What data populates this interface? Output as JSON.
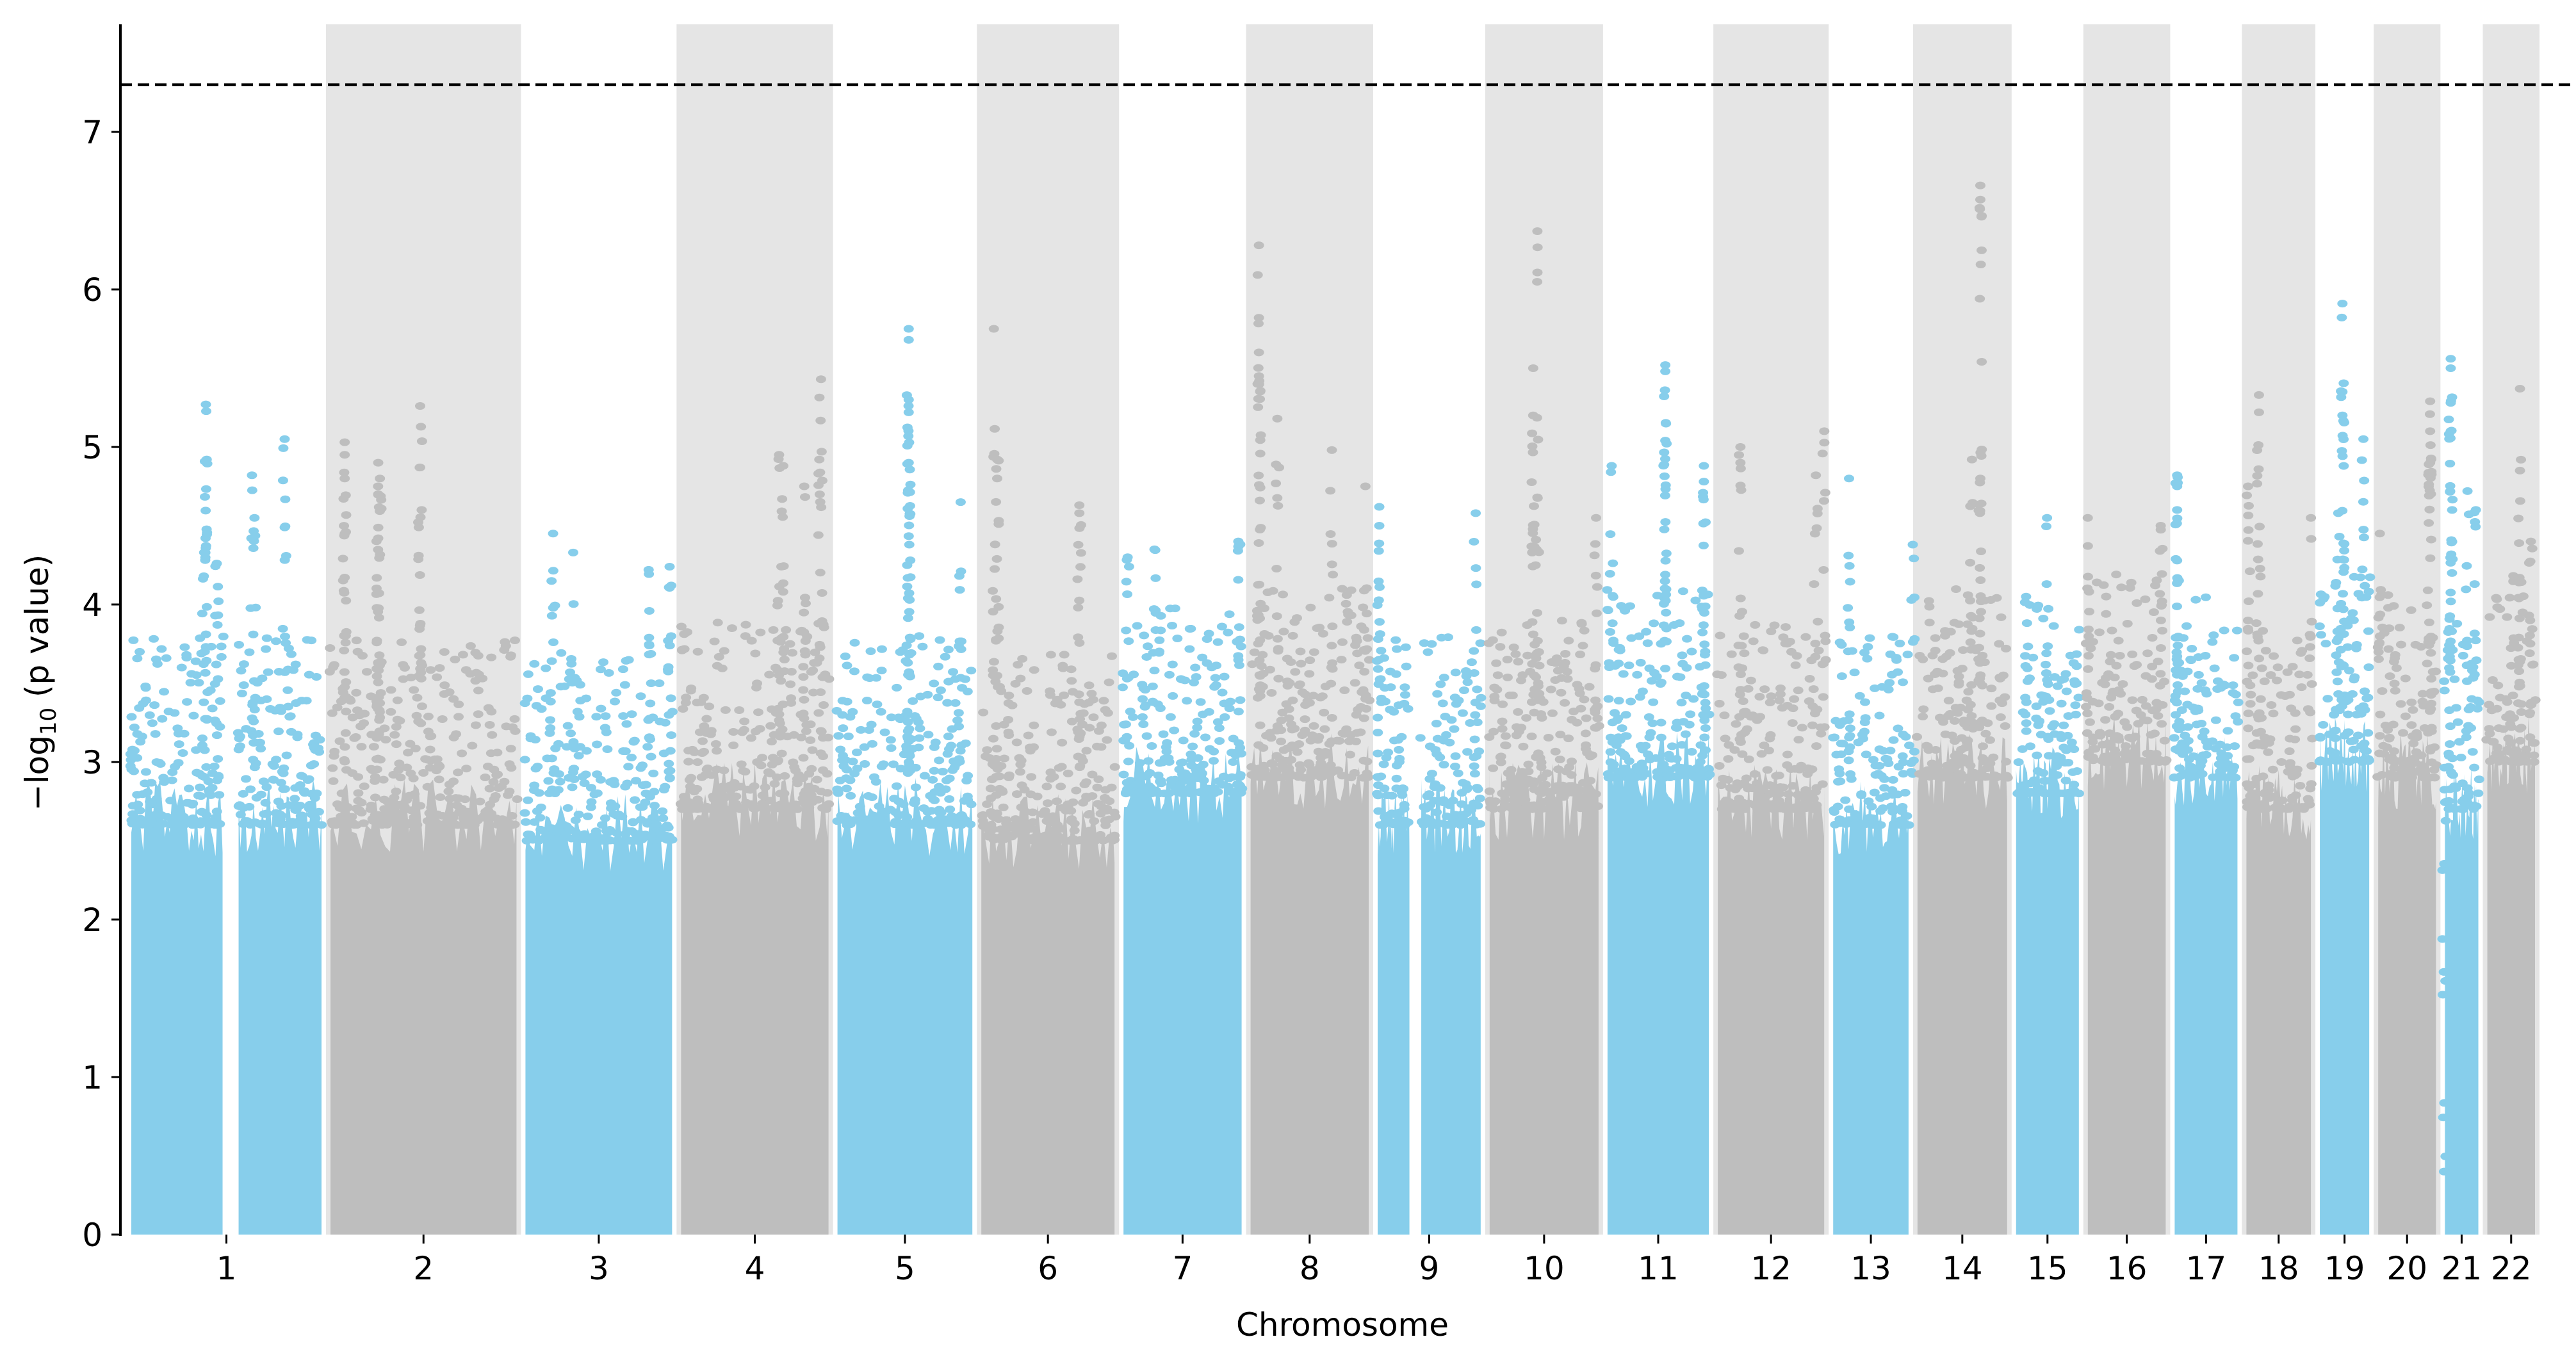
{
  "chart_data": {
    "type": "scatter",
    "subtype": "manhattan",
    "title": "",
    "xlabel": "Chromosome",
    "ylabel_prefix": "−log",
    "ylabel_sub": "10",
    "ylabel_suffix": " (p value)",
    "ylim": [
      0,
      7.65
    ],
    "yticks": [
      0,
      1,
      2,
      3,
      4,
      5,
      6,
      7
    ],
    "threshold": 7.3,
    "grid": false,
    "colors": {
      "odd": "#87CEEB",
      "even": "#BEBEBE",
      "band": "#E5E5E5",
      "threshold": "#000000"
    },
    "chromosomes": [
      {
        "label": "1",
        "length_mb": 233,
        "dense_max": 2.9,
        "gap_mb": [
          115,
          128
        ],
        "top_hits": [
          [
            92,
            5.27
          ],
          [
            93,
            4.92
          ],
          [
            147,
            4.82
          ],
          [
            186,
            5.05
          ],
          [
            150,
            4.55
          ],
          [
            90,
            4.33
          ],
          [
            105,
            4.26
          ]
        ]
      },
      {
        "label": "2",
        "length_mb": 228,
        "dense_max": 2.9,
        "top_hits": [
          [
            20,
            5.03
          ],
          [
            20,
            4.95
          ],
          [
            20,
            4.8
          ],
          [
            62,
            4.8
          ],
          [
            110,
            5.26
          ],
          [
            110,
            4.87
          ],
          [
            60,
            4.9
          ],
          [
            60,
            4.7
          ],
          [
            60,
            4.42
          ]
        ]
      },
      {
        "label": "3",
        "length_mb": 181,
        "dense_max": 2.8,
        "top_hits": [
          [
            36,
            4.45
          ],
          [
            60,
            4.33
          ],
          [
            150,
            4.22
          ],
          [
            175,
            4.24
          ]
        ]
      },
      {
        "label": "4",
        "length_mb": 182,
        "dense_max": 3.0,
        "top_hits": [
          [
            170,
            5.43
          ],
          [
            120,
            4.95
          ],
          [
            125,
            4.88
          ],
          [
            168,
            4.92
          ],
          [
            150,
            4.75
          ]
        ]
      },
      {
        "label": "5",
        "length_mb": 167,
        "dense_max": 2.9,
        "top_hits": [
          [
            88,
            5.75
          ],
          [
            88,
            5.68
          ],
          [
            88,
            5.3
          ],
          [
            88,
            5.22
          ],
          [
            150,
            4.65
          ],
          [
            88,
            4.9
          ]
        ]
      },
      {
        "label": "6",
        "length_mb": 165,
        "dense_max": 2.8,
        "top_hits": [
          [
            18,
            5.75
          ],
          [
            22,
            4.92
          ],
          [
            22,
            4.8
          ],
          [
            120,
            4.63
          ],
          [
            120,
            4.58
          ]
        ]
      },
      {
        "label": "7",
        "length_mb": 147,
        "dense_max": 3.1,
        "top_hits": [
          [
            40,
            4.35
          ],
          [
            140,
            4.4
          ],
          [
            8,
            4.3
          ]
        ]
      },
      {
        "label": "8",
        "length_mb": 147,
        "dense_max": 3.2,
        "top_hits": [
          [
            13,
            6.28
          ],
          [
            13,
            5.82
          ],
          [
            13,
            5.6
          ],
          [
            13,
            5.45
          ],
          [
            35,
            5.18
          ],
          [
            100,
            4.98
          ],
          [
            140,
            4.75
          ]
        ]
      },
      {
        "label": "9",
        "length_mb": 129,
        "dense_max": 2.9,
        "gap_mb": [
          44,
          52
        ],
        "top_hits": [
          [
            5,
            4.62
          ],
          [
            5,
            4.5
          ],
          [
            120,
            4.58
          ]
        ]
      },
      {
        "label": "10",
        "length_mb": 136,
        "dense_max": 3.0,
        "top_hits": [
          [
            60,
            6.37
          ],
          [
            55,
            5.5
          ],
          [
            55,
            5.2
          ],
          [
            60,
            4.68
          ],
          [
            130,
            4.55
          ]
        ]
      },
      {
        "label": "11",
        "length_mb": 127,
        "dense_max": 3.2,
        "top_hits": [
          [
            72,
            5.52
          ],
          [
            72,
            5.48
          ],
          [
            72,
            5.04
          ],
          [
            8,
            4.88
          ],
          [
            118,
            4.88
          ],
          [
            118,
            4.78
          ]
        ]
      },
      {
        "label": "12",
        "length_mb": 133,
        "dense_max": 3.0,
        "top_hits": [
          [
            30,
            5.0
          ],
          [
            30,
            4.9
          ],
          [
            130,
            5.1
          ],
          [
            120,
            4.82
          ]
        ]
      },
      {
        "label": "13",
        "length_mb": 96,
        "dense_max": 2.9,
        "top_hits": [
          [
            22,
            4.8
          ],
          [
            98,
            4.38
          ]
        ]
      },
      {
        "label": "14",
        "length_mb": 113,
        "dense_max": 3.2,
        "top_hits": [
          [
            78,
            6.66
          ],
          [
            78,
            6.57
          ],
          [
            68,
            4.92
          ],
          [
            78,
            4.8
          ]
        ]
      },
      {
        "label": "15",
        "length_mb": 81,
        "dense_max": 3.1,
        "top_hits": [
          [
            40,
            4.55
          ],
          [
            15,
            4.05
          ]
        ]
      },
      {
        "label": "16",
        "length_mb": 99,
        "dense_max": 3.3,
        "top_hits": [
          [
            3,
            4.55
          ],
          [
            90,
            4.5
          ]
        ]
      },
      {
        "label": "17",
        "length_mb": 81,
        "dense_max": 3.2,
        "top_hits": [
          [
            6,
            4.82
          ],
          [
            6,
            4.75
          ],
          [
            6,
            4.6
          ]
        ]
      },
      {
        "label": "18",
        "length_mb": 83,
        "dense_max": 3.0,
        "top_hits": [
          [
            18,
            5.33
          ],
          [
            18,
            5.22
          ],
          [
            5,
            4.75
          ],
          [
            80,
            4.55
          ]
        ]
      },
      {
        "label": "19",
        "length_mb": 65,
        "dense_max": 3.3,
        "top_hits": [
          [
            30,
            5.91
          ],
          [
            30,
            5.35
          ],
          [
            30,
            5.2
          ],
          [
            55,
            5.05
          ],
          [
            25,
            4.58
          ]
        ]
      },
      {
        "label": "20",
        "length_mb": 75,
        "dense_max": 3.2,
        "top_hits": [
          [
            65,
            5.29
          ],
          [
            65,
            5.1
          ],
          [
            65,
            4.9
          ],
          [
            5,
            4.45
          ]
        ]
      },
      {
        "label": "21",
        "length_mb": 46,
        "dense_max": 3.0,
        "top_hits": [
          [
            10,
            5.56
          ],
          [
            10,
            5.5
          ],
          [
            10,
            5.28
          ],
          [
            10,
            5.1
          ],
          [
            30,
            4.72
          ],
          [
            40,
            4.6
          ],
          [
            2,
            0.4
          ]
        ]
      },
      {
        "label": "22",
        "length_mb": 63,
        "dense_max": 3.3,
        "top_hits": [
          [
            42,
            5.37
          ],
          [
            42,
            4.85
          ],
          [
            55,
            4.4
          ]
        ]
      }
    ]
  }
}
